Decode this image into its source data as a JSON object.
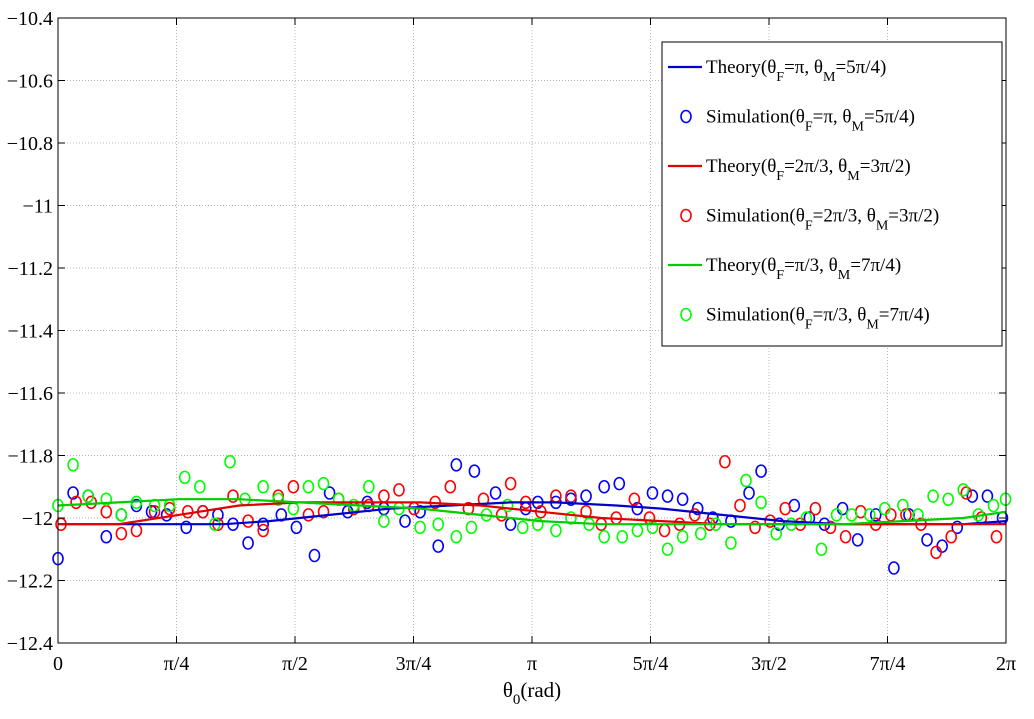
{
  "chart_data": {
    "type": "line",
    "title": "",
    "xlabel_main": "θ",
    "xlabel_sub": "0",
    "xlabel_unit": "(rad)",
    "ylabel": "",
    "xlim": [
      0,
      6.2832
    ],
    "ylim": [
      -12.4,
      -10.4
    ],
    "grid": true,
    "legend_position": "top-right",
    "x_ticks": [
      {
        "value": 0,
        "label": "0"
      },
      {
        "value": 0.7854,
        "label": "π/4"
      },
      {
        "value": 1.5708,
        "label": "π/2"
      },
      {
        "value": 2.3562,
        "label": "3π/4"
      },
      {
        "value": 3.1416,
        "label": "π"
      },
      {
        "value": 3.927,
        "label": "5π/4"
      },
      {
        "value": 4.7124,
        "label": "3π/2"
      },
      {
        "value": 5.4978,
        "label": "7π/4"
      },
      {
        "value": 6.2832,
        "label": "2π"
      }
    ],
    "y_ticks": [
      {
        "value": -10.4,
        "label": "−10.4"
      },
      {
        "value": -10.6,
        "label": "−10.6"
      },
      {
        "value": -10.8,
        "label": "−10.8"
      },
      {
        "value": -11.0,
        "label": "−11"
      },
      {
        "value": -11.2,
        "label": "−11.2"
      },
      {
        "value": -11.4,
        "label": "−11.4"
      },
      {
        "value": -11.6,
        "label": "−11.6"
      },
      {
        "value": -11.8,
        "label": "−11.8"
      },
      {
        "value": -12.0,
        "label": "−12"
      },
      {
        "value": -12.2,
        "label": "−12.2"
      },
      {
        "value": -12.4,
        "label": "−12.4"
      }
    ],
    "series": [
      {
        "name": "Theory(θF=π, θM=5π/4)",
        "legend": {
          "pre": "Theory(θ",
          "s1": "F",
          "mid": "=π, θ",
          "s2": "M",
          "post": "=5π/4)"
        },
        "kind": "line",
        "color": "#0000cc",
        "x": [
          0,
          0.4,
          0.8,
          1.1,
          1.4,
          1.8,
          2.2,
          2.6,
          3.0,
          3.3,
          3.7,
          4.0,
          4.4,
          4.8,
          5.2,
          5.6,
          6.0,
          6.2832
        ],
        "y": [
          -12.02,
          -12.02,
          -12.02,
          -12.02,
          -12.01,
          -11.99,
          -11.97,
          -11.96,
          -11.95,
          -11.95,
          -11.96,
          -11.97,
          -11.99,
          -12.01,
          -12.02,
          -12.02,
          -12.02,
          -12.01
        ]
      },
      {
        "name": "Simulation(θF=π, θM=5π/4)",
        "legend": {
          "pre": "Simulation(θ",
          "s1": "F",
          "mid": "=π, θ",
          "s2": "M",
          "post": "=5π/4)"
        },
        "kind": "scatter",
        "color": "#0000ff",
        "x": [
          0.0,
          0.1,
          0.2,
          0.32,
          0.42,
          0.52,
          0.62,
          0.72,
          0.85,
          0.96,
          1.06,
          1.16,
          1.26,
          1.36,
          1.48,
          1.58,
          1.7,
          1.8,
          1.92,
          2.05,
          2.16,
          2.3,
          2.4,
          2.52,
          2.64,
          2.76,
          2.9,
          3.0,
          3.1,
          3.18,
          3.3,
          3.4,
          3.5,
          3.62,
          3.72,
          3.84,
          3.94,
          4.04,
          4.14,
          4.24,
          4.34,
          4.46,
          4.58,
          4.66,
          4.78,
          4.88,
          4.98,
          5.08,
          5.2,
          5.3,
          5.42,
          5.54,
          5.64,
          5.76,
          5.86,
          5.96,
          6.06,
          6.16,
          6.26
        ],
        "y": [
          -12.13,
          -11.92,
          -11.93,
          -12.06,
          -11.99,
          -11.96,
          -11.98,
          -11.99,
          -12.03,
          -11.98,
          -11.99,
          -12.02,
          -12.08,
          -12.02,
          -11.99,
          -12.03,
          -12.12,
          -11.92,
          -11.98,
          -11.95,
          -11.97,
          -12.01,
          -11.98,
          -12.09,
          -11.83,
          -11.85,
          -11.92,
          -12.02,
          -11.97,
          -11.95,
          -11.95,
          -11.94,
          -11.93,
          -11.9,
          -11.89,
          -11.97,
          -11.92,
          -11.93,
          -11.94,
          -11.97,
          -12.0,
          -12.01,
          -11.92,
          -11.85,
          -12.02,
          -11.96,
          -12.0,
          -12.02,
          -11.97,
          -12.07,
          -11.99,
          -12.16,
          -11.99,
          -12.07,
          -12.09,
          -12.03,
          -11.93,
          -11.93,
          -12.0
        ]
      },
      {
        "name": "Theory(θF=2π/3, θM=3π/2)",
        "legend": {
          "pre": "Theory(θ",
          "s1": "F",
          "mid": "=2π/3, θ",
          "s2": "M",
          "post": "=3π/2)"
        },
        "kind": "line",
        "color": "#e00000",
        "x": [
          0,
          0.4,
          0.8,
          1.2,
          1.6,
          2.0,
          2.4,
          2.8,
          3.2,
          3.6,
          4.0,
          4.4,
          4.8,
          5.2,
          5.6,
          6.0,
          6.2832
        ],
        "y": [
          -12.02,
          -12.02,
          -11.99,
          -11.96,
          -11.95,
          -11.95,
          -11.95,
          -11.96,
          -11.98,
          -12.0,
          -12.01,
          -12.02,
          -12.02,
          -12.02,
          -12.02,
          -12.02,
          -12.02
        ]
      },
      {
        "name": "Simulation(θF=2π/3, θM=3π/2)",
        "legend": {
          "pre": "Simulation(θ",
          "s1": "F",
          "mid": "=2π/3, θ",
          "s2": "M",
          "post": "=3π/2)"
        },
        "kind": "scatter",
        "color": "#ff0000",
        "x": [
          0.02,
          0.12,
          0.22,
          0.32,
          0.42,
          0.52,
          0.64,
          0.74,
          0.86,
          0.96,
          1.06,
          1.16,
          1.26,
          1.36,
          1.46,
          1.56,
          1.66,
          1.76,
          1.86,
          1.96,
          2.06,
          2.16,
          2.26,
          2.36,
          2.5,
          2.6,
          2.72,
          2.82,
          2.94,
          3.0,
          3.1,
          3.2,
          3.3,
          3.4,
          3.5,
          3.6,
          3.7,
          3.82,
          3.92,
          4.02,
          4.12,
          4.22,
          4.32,
          4.42,
          4.52,
          4.62,
          4.72,
          4.82,
          4.92,
          5.02,
          5.12,
          5.22,
          5.32,
          5.42,
          5.52,
          5.62,
          5.72,
          5.82,
          5.92,
          6.02,
          6.12,
          6.22
        ],
        "y": [
          -12.02,
          -11.95,
          -11.95,
          -11.98,
          -12.05,
          -12.04,
          -11.98,
          -11.97,
          -11.98,
          -11.98,
          -12.02,
          -11.93,
          -12.01,
          -12.04,
          -11.93,
          -11.9,
          -11.99,
          -11.98,
          -11.94,
          -11.97,
          -11.96,
          -11.93,
          -11.91,
          -11.97,
          -11.95,
          -11.9,
          -11.97,
          -11.94,
          -11.99,
          -11.89,
          -11.95,
          -11.98,
          -11.93,
          -11.93,
          -11.98,
          -12.02,
          -12.0,
          -11.94,
          -12.0,
          -12.04,
          -12.02,
          -11.99,
          -12.02,
          -11.82,
          -11.96,
          -12.03,
          -12.01,
          -11.97,
          -12.02,
          -11.97,
          -12.03,
          -12.06,
          -11.98,
          -12.02,
          -11.99,
          -11.99,
          -12.02,
          -12.11,
          -12.06,
          -11.92,
          -12.0,
          -12.06
        ]
      },
      {
        "name": "Theory(θF=π/3, θM=7π/4)",
        "legend": {
          "pre": "Theory(θ",
          "s1": "F",
          "mid": "=π/3, θ",
          "s2": "M",
          "post": "=7π/4)"
        },
        "kind": "line",
        "color": "#00cc00",
        "x": [
          0,
          0.4,
          0.8,
          1.2,
          1.6,
          2.0,
          2.4,
          2.8,
          3.2,
          3.6,
          4.0,
          4.4,
          4.8,
          5.2,
          5.6,
          6.0,
          6.2832
        ],
        "y": [
          -11.96,
          -11.95,
          -11.94,
          -11.94,
          -11.95,
          -11.96,
          -11.97,
          -11.99,
          -12.01,
          -12.02,
          -12.02,
          -12.02,
          -12.02,
          -12.02,
          -12.01,
          -12.0,
          -11.98
        ]
      },
      {
        "name": "Simulation(θF=π/3, θM=7π/4)",
        "legend": {
          "pre": "Simulation(θ",
          "s1": "F",
          "mid": "=π/3, θ",
          "s2": "M",
          "post": "=7π/4)"
        },
        "kind": "scatter",
        "color": "#00ff00",
        "x": [
          0.0,
          0.1,
          0.2,
          0.32,
          0.42,
          0.52,
          0.64,
          0.74,
          0.84,
          0.94,
          1.04,
          1.14,
          1.24,
          1.36,
          1.46,
          1.56,
          1.66,
          1.76,
          1.86,
          1.96,
          2.06,
          2.16,
          2.26,
          2.4,
          2.52,
          2.64,
          2.74,
          2.84,
          2.98,
          3.08,
          3.18,
          3.3,
          3.4,
          3.52,
          3.62,
          3.74,
          3.84,
          3.94,
          4.04,
          4.14,
          4.26,
          4.36,
          4.46,
          4.56,
          4.66,
          4.76,
          4.86,
          4.96,
          5.06,
          5.16,
          5.26,
          5.38,
          5.48,
          5.6,
          5.7,
          5.8,
          5.9,
          6.0,
          6.1,
          6.2,
          6.28
        ],
        "y": [
          -11.96,
          -11.83,
          -11.93,
          -11.94,
          -11.99,
          -11.95,
          -11.96,
          -11.96,
          -11.87,
          -11.9,
          -12.02,
          -11.82,
          -11.94,
          -11.9,
          -11.94,
          -11.97,
          -11.9,
          -11.89,
          -11.94,
          -11.96,
          -11.9,
          -12.01,
          -11.97,
          -12.03,
          -12.02,
          -12.06,
          -12.03,
          -11.99,
          -11.96,
          -12.03,
          -12.02,
          -12.04,
          -12.0,
          -12.02,
          -12.06,
          -12.06,
          -12.04,
          -12.03,
          -12.1,
          -12.06,
          -12.05,
          -12.02,
          -12.08,
          -11.88,
          -11.95,
          -12.05,
          -12.02,
          -12.0,
          -12.1,
          -11.99,
          -11.99,
          -11.99,
          -11.97,
          -11.96,
          -11.99,
          -11.93,
          -11.94,
          -11.91,
          -11.99,
          -11.96,
          -11.94
        ]
      }
    ]
  }
}
